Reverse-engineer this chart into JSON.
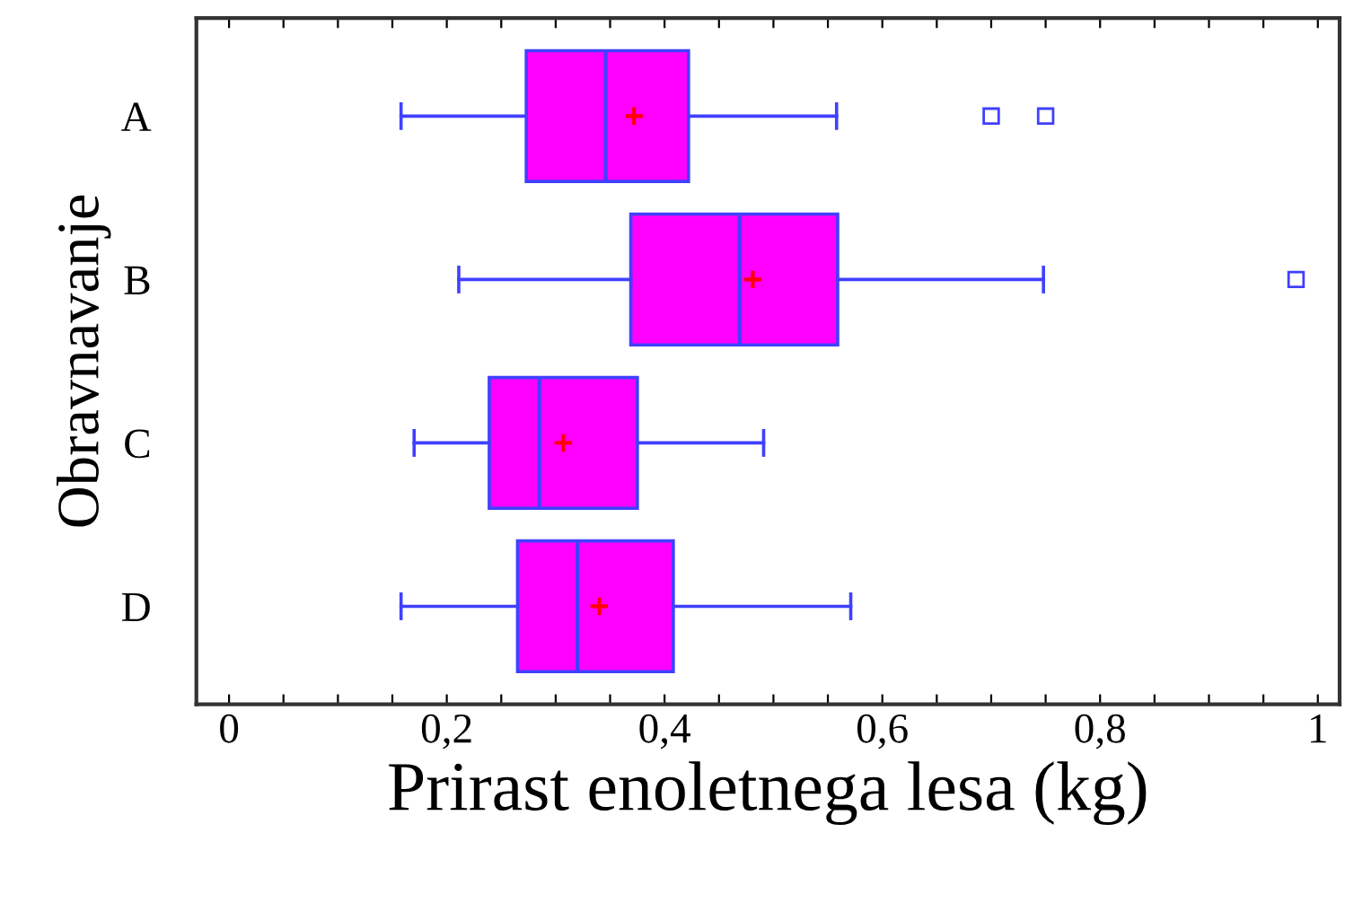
{
  "chart_data": {
    "type": "box",
    "orientation": "horizontal",
    "xlabel": "Prirast enoletnega lesa (kg)",
    "ylabel": "Obravnavanje",
    "categories": [
      "A",
      "B",
      "C",
      "D"
    ],
    "series": [
      {
        "color": "#ff00ff",
        "boxes": [
          {
            "low": 0.158,
            "q1": 0.273,
            "median": 0.346,
            "q3": 0.422,
            "high": 0.558,
            "mean": 0.372,
            "outliers": [
              0.7,
              0.75
            ]
          },
          {
            "low": 0.211,
            "q1": 0.369,
            "median": 0.469,
            "q3": 0.559,
            "high": 0.748,
            "mean": 0.481,
            "outliers": [
              0.98
            ]
          },
          {
            "low": 0.17,
            "q1": 0.239,
            "median": 0.285,
            "q3": 0.375,
            "high": 0.491,
            "mean": 0.307
          },
          {
            "low": 0.158,
            "q1": 0.265,
            "median": 0.32,
            "q3": 0.408,
            "high": 0.571,
            "mean": 0.34
          }
        ]
      }
    ],
    "xlim": [
      -0.03,
      1.02
    ],
    "xticks": [
      {
        "value": 0,
        "label": "0"
      },
      {
        "value": 0.05,
        "label": null
      },
      {
        "value": 0.1,
        "label": null
      },
      {
        "value": 0.15,
        "label": null
      },
      {
        "value": 0.2,
        "label": "0,2"
      },
      {
        "value": 0.25,
        "label": null
      },
      {
        "value": 0.3,
        "label": null
      },
      {
        "value": 0.35,
        "label": null
      },
      {
        "value": 0.4,
        "label": "0,4"
      },
      {
        "value": 0.45,
        "label": null
      },
      {
        "value": 0.5,
        "label": null
      },
      {
        "value": 0.55,
        "label": null
      },
      {
        "value": 0.6,
        "label": "0,6"
      },
      {
        "value": 0.65,
        "label": null
      },
      {
        "value": 0.7,
        "label": null
      },
      {
        "value": 0.75,
        "label": null
      },
      {
        "value": 0.8,
        "label": "0,8"
      },
      {
        "value": 0.85,
        "label": null
      },
      {
        "value": 0.9,
        "label": null
      },
      {
        "value": 0.95,
        "label": null
      },
      {
        "value": 1,
        "label": "1"
      }
    ],
    "grid": false,
    "legend": false
  }
}
